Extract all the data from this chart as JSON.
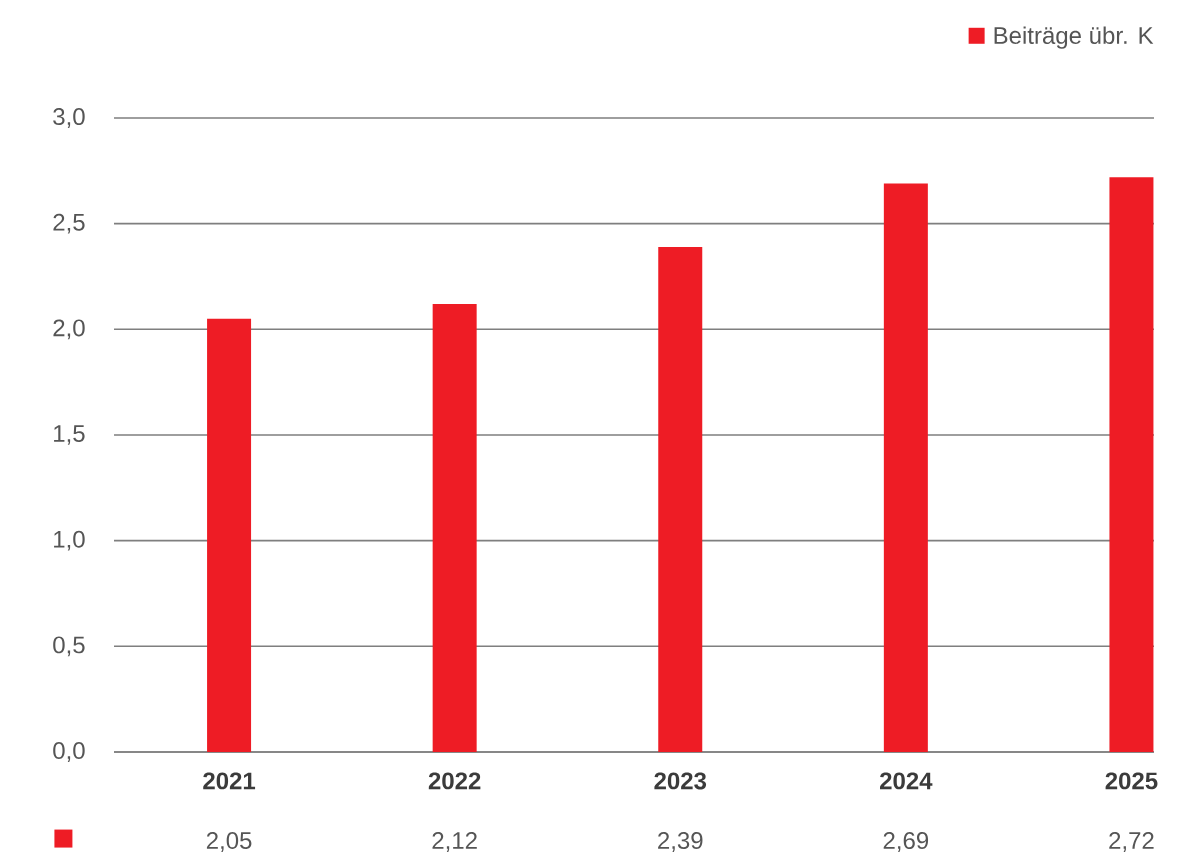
{
  "chart_data": {
    "type": "bar",
    "categories": [
      "2021",
      "2022",
      "2023",
      "2024",
      "2025"
    ],
    "series": [
      {
        "name": "Beiträge übr. K",
        "color": "#ee1c25",
        "values": [
          2.05,
          2.12,
          2.39,
          2.69,
          2.72
        ],
        "value_labels": [
          "2,05",
          "2,12",
          "2,39",
          "2,69",
          "2,72"
        ]
      }
    ],
    "ylim": [
      0,
      3
    ],
    "yticks": [
      {
        "value": 0,
        "label": "0,0"
      },
      {
        "value": 0.5,
        "label": "0,5"
      },
      {
        "value": 1,
        "label": "1,0"
      },
      {
        "value": 1.5,
        "label": "1,5"
      },
      {
        "value": 2,
        "label": "2,0"
      },
      {
        "value": 2.5,
        "label": "2,5"
      },
      {
        "value": 3,
        "label": "3,0"
      }
    ],
    "grid": "y",
    "legend": "top right"
  }
}
